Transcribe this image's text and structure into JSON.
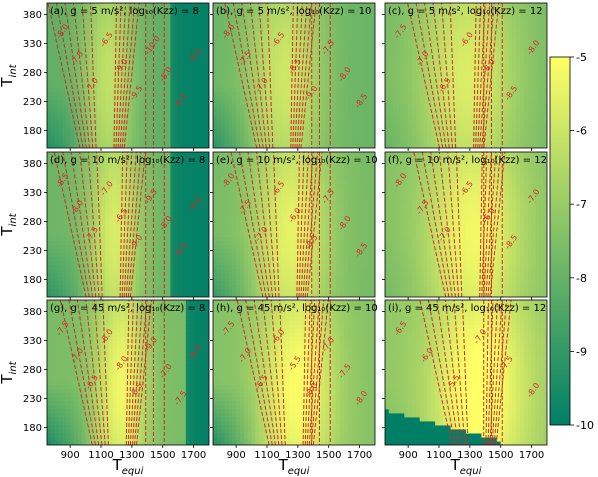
{
  "chart_data": {
    "type": "heatmap",
    "colormap": {
      "name": "summer_r",
      "range": [
        -10,
        -5
      ],
      "low_color": "#007f66",
      "high_color": "#ffff66",
      "ticks": [
        "-5",
        "-6",
        "-7",
        "-8",
        "-9",
        "-10"
      ]
    },
    "contour_color": "#d62728",
    "xlabel_main": "T",
    "xlabel_sub": "equi",
    "ylabel_main": "T",
    "ylabel_sub": "int",
    "xlim": [
      750,
      1800
    ],
    "ylim": [
      150,
      400
    ],
    "xticks": [
      900,
      1100,
      1300,
      1500,
      1700
    ],
    "yticks": [
      180,
      230,
      280,
      330,
      380
    ],
    "panels": [
      {
        "id": "a",
        "label": "(a), g = 5 m/s², log₁₀(Kzz) = 8",
        "g": 5,
        "logKzz": 8,
        "contour_labels": [
          "-8.0",
          "-7.5",
          "-7.0",
          "-6.5",
          "-9.0",
          "-9.5",
          "-10.0",
          "-8.0",
          "-8.5",
          "-9.0"
        ]
      },
      {
        "id": "b",
        "label": "(b), g = 5 m/s², log₁₀(Kzz) = 10",
        "g": 5,
        "logKzz": 10,
        "contour_labels": [
          "-8.0",
          "-7.5",
          "-7.0",
          "-6.5",
          "-8.5",
          "-9.0",
          "-7.5",
          "-8.0",
          "-8.5"
        ]
      },
      {
        "id": "c",
        "label": "(c), g = 5 m/s², log₁₀(Kzz) = 12",
        "g": 5,
        "logKzz": 12,
        "contour_labels": [
          "-7.5",
          "-7.0",
          "-6.5",
          "-6.0",
          "-8.0",
          "-8.5",
          "-8.0"
        ]
      },
      {
        "id": "d",
        "label": "(d), g = 10 m/s², log₁₀(Kzz) = 8",
        "g": 10,
        "logKzz": 8,
        "contour_labels": [
          "-8.5",
          "-8.0",
          "-7.5",
          "-7.0",
          "-6.5",
          "-9.0",
          "-9.5",
          "-8.0",
          "-8.5",
          "-9.0"
        ]
      },
      {
        "id": "e",
        "label": "(e), g = 10 m/s², log₁₀(Kzz) = 10",
        "g": 10,
        "logKzz": 10,
        "contour_labels": [
          "-8.0",
          "-7.5",
          "-7.0",
          "-6.5",
          "-6.0",
          "-8.5",
          "-7.5",
          "-8.0",
          "-8.5"
        ]
      },
      {
        "id": "f",
        "label": "(f), g = 10 m/s², log₁₀(Kzz) = 12",
        "g": 10,
        "logKzz": 12,
        "contour_labels": [
          "-8.0",
          "-7.5",
          "-7.0",
          "-6.5",
          "-6.0",
          "-8.5",
          "-7.0"
        ]
      },
      {
        "id": "g",
        "label": "(g), g = 45 m/s², log₁₀(Kzz) = 8",
        "g": 45,
        "logKzz": 8,
        "contour_labels": [
          "-7.5",
          "-7.0",
          "-6.5",
          "-6.0",
          "-8.0",
          "-8.5",
          "-9.0",
          "-7.0",
          "-7.5",
          "-8.0"
        ]
      },
      {
        "id": "h",
        "label": "(h), g = 45 m/s², log₁₀(Kzz) = 10",
        "g": 45,
        "logKzz": 10,
        "contour_labels": [
          "-7.5",
          "-7.0",
          "-6.5",
          "-6.0",
          "-5.5",
          "-8.0",
          "-7.0",
          "-7.5",
          "-8.0"
        ]
      },
      {
        "id": "i",
        "label": "(i), g = 45 m/s², log₁₀(Kzz) = 12",
        "g": 45,
        "logKzz": 12,
        "contour_labels": [
          "-6.5",
          "-6.0",
          "-5.5",
          "-7.0",
          "-7.5",
          "-8.0"
        ]
      }
    ]
  }
}
